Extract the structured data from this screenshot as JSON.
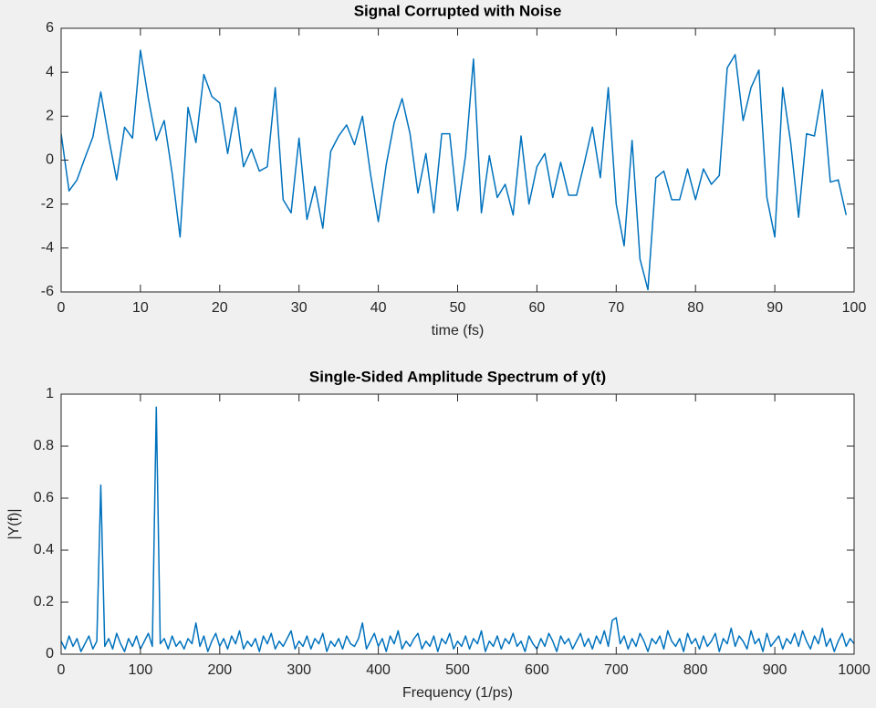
{
  "chart_data": [
    {
      "type": "line",
      "title": "Signal Corrupted with Noise",
      "xlabel": "time (fs)",
      "color": "#0072bd",
      "x": [
        0,
        1,
        2,
        3,
        4,
        5,
        6,
        7,
        8,
        9,
        10,
        11,
        12,
        13,
        14,
        15,
        16,
        17,
        18,
        19,
        20,
        21,
        22,
        23,
        24,
        25,
        26,
        27,
        28,
        29,
        30,
        31,
        32,
        33,
        34,
        35,
        36,
        37,
        38,
        39,
        40,
        41,
        42,
        43,
        44,
        45,
        46,
        47,
        48,
        49,
        50,
        51,
        52,
        53,
        54,
        55,
        56,
        57,
        58,
        59,
        60,
        61,
        62,
        63,
        64,
        65,
        66,
        67,
        68,
        69,
        70,
        71,
        72,
        73,
        74,
        75,
        76,
        77,
        78,
        79,
        80,
        81,
        82,
        83,
        84,
        85,
        86,
        87,
        88,
        89,
        90,
        91,
        92,
        93,
        94,
        95,
        96,
        97,
        98,
        99
      ],
      "values": [
        1.2,
        -1.4,
        -0.9,
        0.1,
        1.05,
        3.1,
        1.0,
        -0.9,
        1.5,
        1.0,
        5.0,
        2.8,
        0.9,
        1.8,
        -0.6,
        -3.5,
        2.4,
        0.8,
        3.9,
        2.9,
        2.6,
        0.3,
        2.4,
        -0.3,
        0.5,
        -0.5,
        -0.3,
        3.3,
        -1.8,
        -2.4,
        1.0,
        -2.7,
        -1.2,
        -3.1,
        0.4,
        1.1,
        1.6,
        0.7,
        2.0,
        -0.6,
        -2.8,
        -0.2,
        1.7,
        2.8,
        1.2,
        -1.5,
        0.3,
        -2.4,
        1.2,
        1.2,
        -2.3,
        0.2,
        4.6,
        -2.4,
        0.2,
        -1.7,
        -1.1,
        -2.5,
        1.1,
        -2.0,
        -0.3,
        0.3,
        -1.7,
        -0.1,
        -1.6,
        -1.6,
        -0.1,
        1.5,
        -0.8,
        3.3,
        -2.0,
        -3.9,
        0.9,
        -4.5,
        -5.9,
        -0.8,
        -0.5,
        -1.8,
        -1.8,
        -0.4,
        -1.8,
        -0.4,
        -1.1,
        -0.7,
        4.2,
        4.8,
        1.8,
        3.3,
        4.1,
        -1.7,
        -3.5,
        3.3,
        0.8,
        -2.6,
        1.2,
        1.1,
        3.2,
        -1.0,
        -0.9,
        -2.5
      ],
      "xlim": [
        0,
        100
      ],
      "ylim": [
        -6,
        6
      ],
      "xticks": [
        0,
        10,
        20,
        30,
        40,
        50,
        60,
        70,
        80,
        90,
        100
      ],
      "yticks": [
        -6,
        -4,
        -2,
        0,
        2,
        4,
        6
      ]
    },
    {
      "type": "line",
      "title": "Single-Sided Amplitude Spectrum of y(t)",
      "xlabel": "Frequency (1/ps)",
      "ylabel": "|Y(f)|",
      "color": "#0072bd",
      "x": [
        0,
        5,
        10,
        15,
        20,
        25,
        30,
        35,
        40,
        45,
        50,
        55,
        60,
        65,
        70,
        75,
        80,
        85,
        90,
        95,
        100,
        105,
        110,
        115,
        120,
        125,
        130,
        135,
        140,
        145,
        150,
        155,
        160,
        165,
        170,
        175,
        180,
        185,
        190,
        195,
        200,
        205,
        210,
        215,
        220,
        225,
        230,
        235,
        240,
        245,
        250,
        255,
        260,
        265,
        270,
        275,
        280,
        285,
        290,
        295,
        300,
        305,
        310,
        315,
        320,
        325,
        330,
        335,
        340,
        345,
        350,
        355,
        360,
        365,
        370,
        375,
        380,
        385,
        390,
        395,
        400,
        405,
        410,
        415,
        420,
        425,
        430,
        435,
        440,
        445,
        450,
        455,
        460,
        465,
        470,
        475,
        480,
        485,
        490,
        495,
        500,
        505,
        510,
        515,
        520,
        525,
        530,
        535,
        540,
        545,
        550,
        555,
        560,
        565,
        570,
        575,
        580,
        585,
        590,
        595,
        600,
        605,
        610,
        615,
        620,
        625,
        630,
        635,
        640,
        645,
        650,
        655,
        660,
        665,
        670,
        675,
        680,
        685,
        690,
        695,
        700,
        705,
        710,
        715,
        720,
        725,
        730,
        735,
        740,
        745,
        750,
        755,
        760,
        765,
        770,
        775,
        780,
        785,
        790,
        795,
        800,
        805,
        810,
        815,
        820,
        825,
        830,
        835,
        840,
        845,
        850,
        855,
        860,
        865,
        870,
        875,
        880,
        885,
        890,
        895,
        900,
        905,
        910,
        915,
        920,
        925,
        930,
        935,
        940,
        945,
        950,
        955,
        960,
        965,
        970,
        975,
        980,
        985,
        990,
        995,
        1000
      ],
      "values": [
        0.05,
        0.02,
        0.07,
        0.03,
        0.06,
        0.01,
        0.04,
        0.07,
        0.02,
        0.05,
        0.65,
        0.03,
        0.06,
        0.02,
        0.08,
        0.04,
        0.01,
        0.06,
        0.03,
        0.07,
        0.02,
        0.05,
        0.08,
        0.03,
        0.95,
        0.04,
        0.06,
        0.02,
        0.07,
        0.03,
        0.05,
        0.02,
        0.06,
        0.04,
        0.12,
        0.03,
        0.07,
        0.01,
        0.05,
        0.08,
        0.03,
        0.06,
        0.02,
        0.07,
        0.04,
        0.09,
        0.02,
        0.05,
        0.03,
        0.06,
        0.01,
        0.07,
        0.04,
        0.08,
        0.02,
        0.05,
        0.03,
        0.06,
        0.09,
        0.02,
        0.05,
        0.03,
        0.07,
        0.02,
        0.06,
        0.04,
        0.08,
        0.01,
        0.05,
        0.03,
        0.06,
        0.02,
        0.07,
        0.04,
        0.03,
        0.06,
        0.12,
        0.02,
        0.05,
        0.08,
        0.03,
        0.06,
        0.01,
        0.07,
        0.04,
        0.09,
        0.02,
        0.05,
        0.03,
        0.06,
        0.08,
        0.02,
        0.05,
        0.03,
        0.07,
        0.01,
        0.06,
        0.04,
        0.08,
        0.02,
        0.05,
        0.03,
        0.07,
        0.02,
        0.06,
        0.04,
        0.09,
        0.01,
        0.05,
        0.03,
        0.07,
        0.02,
        0.06,
        0.04,
        0.08,
        0.03,
        0.05,
        0.01,
        0.07,
        0.04,
        0.02,
        0.06,
        0.03,
        0.08,
        0.05,
        0.01,
        0.07,
        0.04,
        0.06,
        0.02,
        0.05,
        0.08,
        0.03,
        0.06,
        0.02,
        0.07,
        0.04,
        0.09,
        0.03,
        0.13,
        0.14,
        0.04,
        0.07,
        0.02,
        0.06,
        0.03,
        0.08,
        0.05,
        0.01,
        0.06,
        0.04,
        0.07,
        0.02,
        0.09,
        0.05,
        0.03,
        0.06,
        0.01,
        0.08,
        0.04,
        0.06,
        0.02,
        0.07,
        0.03,
        0.05,
        0.08,
        0.01,
        0.06,
        0.04,
        0.1,
        0.03,
        0.07,
        0.05,
        0.02,
        0.09,
        0.04,
        0.06,
        0.01,
        0.08,
        0.03,
        0.05,
        0.07,
        0.02,
        0.06,
        0.04,
        0.08,
        0.03,
        0.09,
        0.05,
        0.02,
        0.07,
        0.04,
        0.1,
        0.03,
        0.06,
        0.01,
        0.05,
        0.08,
        0.03,
        0.06,
        0.04
      ],
      "xlim": [
        0,
        1000
      ],
      "ylim": [
        0,
        1
      ],
      "xticks": [
        0,
        100,
        200,
        300,
        400,
        500,
        600,
        700,
        800,
        900,
        1000
      ],
      "yticks": [
        0,
        0.2,
        0.4,
        0.6,
        0.8,
        1
      ]
    }
  ]
}
